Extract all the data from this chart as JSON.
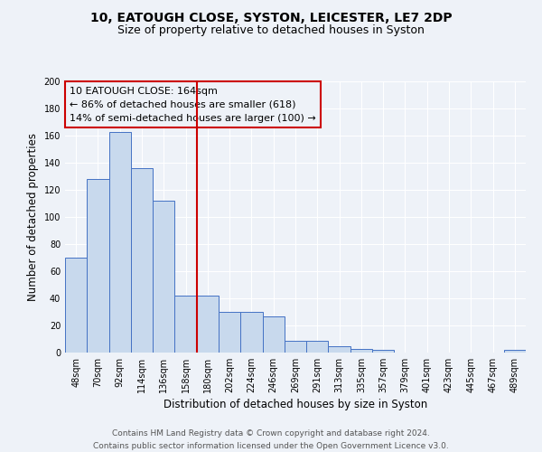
{
  "title": "10, EATOUGH CLOSE, SYSTON, LEICESTER, LE7 2DP",
  "subtitle": "Size of property relative to detached houses in Syston",
  "xlabel": "Distribution of detached houses by size in Syston",
  "ylabel": "Number of detached properties",
  "bar_labels": [
    "48sqm",
    "70sqm",
    "92sqm",
    "114sqm",
    "136sqm",
    "158sqm",
    "180sqm",
    "202sqm",
    "224sqm",
    "246sqm",
    "269sqm",
    "291sqm",
    "313sqm",
    "335sqm",
    "357sqm",
    "379sqm",
    "401sqm",
    "423sqm",
    "445sqm",
    "467sqm",
    "489sqm"
  ],
  "bar_values": [
    70,
    128,
    163,
    136,
    112,
    42,
    42,
    30,
    30,
    27,
    9,
    9,
    5,
    3,
    2,
    0,
    0,
    0,
    0,
    0,
    2
  ],
  "bar_color": "#c8d9ed",
  "bar_edge_color": "#4472c4",
  "vline_x": 5.5,
  "vline_color": "#cc0000",
  "annotation_line1": "10 EATOUGH CLOSE: 164sqm",
  "annotation_line2": "← 86% of detached houses are smaller (618)",
  "annotation_line3": "14% of semi-detached houses are larger (100) →",
  "annotation_box_color": "#cc0000",
  "ylim": [
    0,
    200
  ],
  "yticks": [
    0,
    20,
    40,
    60,
    80,
    100,
    120,
    140,
    160,
    180,
    200
  ],
  "footer_line1": "Contains HM Land Registry data © Crown copyright and database right 2024.",
  "footer_line2": "Contains public sector information licensed under the Open Government Licence v3.0.",
  "bg_color": "#eef2f8",
  "grid_color": "#ffffff",
  "title_fontsize": 10,
  "subtitle_fontsize": 9,
  "axis_label_fontsize": 8.5,
  "tick_fontsize": 7,
  "annotation_fontsize": 8,
  "footer_fontsize": 6.5
}
